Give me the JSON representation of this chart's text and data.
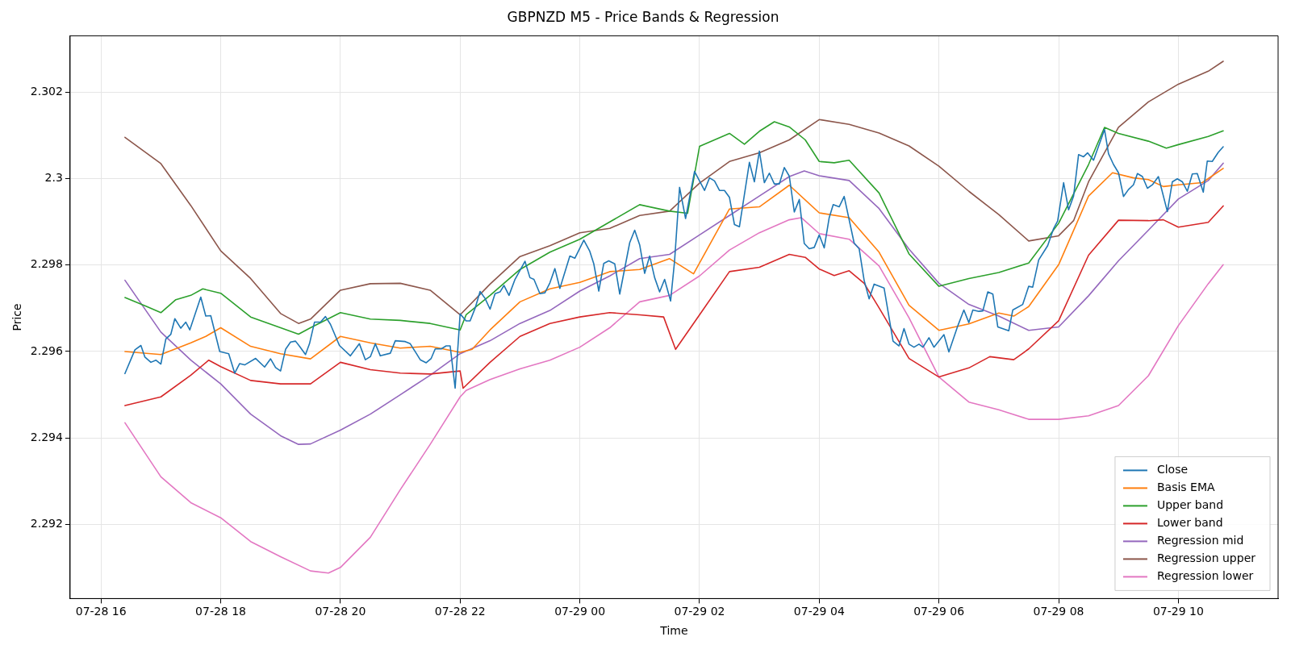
{
  "chart_data": {
    "type": "line",
    "title": "GBPNZD M5 - Price Bands & Regression",
    "xlabel": "Time",
    "ylabel": "Price",
    "xlim": [
      "--07-28T15:29",
      "--07-29T11:40"
    ],
    "ylim": [
      2.29028,
      2.30331
    ],
    "xticks": [
      {
        "value": "--07-28T16:00",
        "label": "07-28 16"
      },
      {
        "value": "--07-28T18:00",
        "label": "07-28 18"
      },
      {
        "value": "--07-28T20:00",
        "label": "07-28 20"
      },
      {
        "value": "--07-28T22:00",
        "label": "07-28 22"
      },
      {
        "value": "--07-29T00:00",
        "label": "07-29 00"
      },
      {
        "value": "--07-29T02:00",
        "label": "07-29 02"
      },
      {
        "value": "--07-29T04:00",
        "label": "07-29 04"
      },
      {
        "value": "--07-29T06:00",
        "label": "07-29 06"
      },
      {
        "value": "--07-29T08:00",
        "label": "07-29 08"
      },
      {
        "value": "--07-29T10:00",
        "label": "07-29 10"
      }
    ],
    "yticks": [
      2.292,
      2.294,
      2.296,
      2.298,
      2.3,
      2.302
    ],
    "grid": true,
    "legend": "bottom right",
    "series": [
      {
        "name": "Close",
        "color": "#1f77b4",
        "x": [
          "--07-28T16:24",
          "--07-28T16:34",
          "--07-28T16:40",
          "--07-28T16:44",
          "--07-28T16:50",
          "--07-28T16:55",
          "--07-28T17:00",
          "--07-28T17:05",
          "--07-28T17:10",
          "--07-28T17:14",
          "--07-28T17:20",
          "--07-28T17:25",
          "--07-28T17:29",
          "--07-28T17:40",
          "--07-28T17:45",
          "--07-28T17:50",
          "--07-28T17:59",
          "--07-28T18:08",
          "--07-28T18:14",
          "--07-28T18:19",
          "--07-28T18:24",
          "--07-28T18:35",
          "--07-28T18:44",
          "--07-28T18:50",
          "--07-28T18:55",
          "--07-28T19:00",
          "--07-28T19:05",
          "--07-28T19:10",
          "--07-28T19:15",
          "--07-28T19:19",
          "--07-28T19:25",
          "--07-28T19:29",
          "--07-28T19:34",
          "--07-28T19:40",
          "--07-28T19:45",
          "--07-28T19:50",
          "--07-28T19:59",
          "--07-28T20:10",
          "--07-28T20:19",
          "--07-28T20:25",
          "--07-28T20:30",
          "--07-28T20:35",
          "--07-28T20:40",
          "--07-28T20:50",
          "--07-28T20:55",
          "--07-28T21:05",
          "--07-28T21:10",
          "--07-28T21:16",
          "--07-28T21:20",
          "--07-28T21:26",
          "--07-28T21:31",
          "--07-28T21:35",
          "--07-28T21:41",
          "--07-28T21:46",
          "--07-28T21:50",
          "--07-28T21:55",
          "--07-28T22:00",
          "--07-28T22:06",
          "--07-28T22:10",
          "--07-28T22:15",
          "--07-28T22:20",
          "--07-28T22:25",
          "--07-28T22:30",
          "--07-28T22:35",
          "--07-28T22:40",
          "--07-28T22:44",
          "--07-28T22:49",
          "--07-28T22:55",
          "--07-28T23:05",
          "--07-28T23:10",
          "--07-28T23:14",
          "--07-28T23:20",
          "--07-28T23:25",
          "--07-28T23:30",
          "--07-28T23:35",
          "--07-28T23:40",
          "--07-28T23:50",
          "--07-28T23:55",
          "--07-29T00:04",
          "--07-29T00:10",
          "--07-29T00:14",
          "--07-29T00:19",
          "--07-29T00:24",
          "--07-29T00:29",
          "--07-29T00:35",
          "--07-29T00:40",
          "--07-29T00:50",
          "--07-29T00:55",
          "--07-29T01:00",
          "--07-29T01:05",
          "--07-29T01:10",
          "--07-29T01:15",
          "--07-29T01:20",
          "--07-29T01:25",
          "--07-29T01:31",
          "--07-29T01:35",
          "--07-29T01:40",
          "--07-29T01:46",
          "--07-29T01:55",
          "--07-29T02:00",
          "--07-29T02:05",
          "--07-29T02:10",
          "--07-29T02:15",
          "--07-29T02:20",
          "--07-29T02:25",
          "--07-29T02:30",
          "--07-29T02:35",
          "--07-29T02:40",
          "--07-29T02:50",
          "--07-29T02:55",
          "--07-29T03:00",
          "--07-29T03:05",
          "--07-29T03:10",
          "--07-29T03:15",
          "--07-29T03:20",
          "--07-29T03:25",
          "--07-29T03:30",
          "--07-29T03:35",
          "--07-29T03:40",
          "--07-29T03:45",
          "--07-29T03:50",
          "--07-29T03:55",
          "--07-29T04:00",
          "--07-29T04:05",
          "--07-29T04:10",
          "--07-29T04:14",
          "--07-29T04:20",
          "--07-29T04:25",
          "--07-29T04:35",
          "--07-29T04:40",
          "--07-29T04:45",
          "--07-29T04:50",
          "--07-29T04:55",
          "--07-29T05:05",
          "--07-29T05:14",
          "--07-29T05:20",
          "--07-29T05:25",
          "--07-29T05:30",
          "--07-29T05:35",
          "--07-29T05:40",
          "--07-29T05:44",
          "--07-29T05:50",
          "--07-29T05:55",
          "--07-29T06:05",
          "--07-29T06:10",
          "--07-29T06:19",
          "--07-29T06:25",
          "--07-29T06:30",
          "--07-29T06:34",
          "--07-29T06:40",
          "--07-29T06:44",
          "--07-29T06:49",
          "--07-29T06:54",
          "--07-29T06:59",
          "--07-29T07:10",
          "--07-29T07:14",
          "--07-29T07:24",
          "--07-29T07:30",
          "--07-29T07:34",
          "--07-29T07:40",
          "--07-29T07:49",
          "--07-29T07:55",
          "--07-29T07:59",
          "--07-29T08:05",
          "--07-29T08:10",
          "--07-29T08:15",
          "--07-29T08:20",
          "--07-29T08:25",
          "--07-29T08:29",
          "--07-29T08:35",
          "--07-29T08:46",
          "--07-29T08:50",
          "--07-29T08:55",
          "--07-29T09:00",
          "--07-29T09:05",
          "--07-29T09:10",
          "--07-29T09:15",
          "--07-29T09:19",
          "--07-29T09:24",
          "--07-29T09:29",
          "--07-29T09:34",
          "--07-29T09:40",
          "--07-29T09:49",
          "--07-29T09:54",
          "--07-29T09:59",
          "--07-29T10:04",
          "--07-29T10:09",
          "--07-29T10:14",
          "--07-29T10:19",
          "--07-29T10:25",
          "--07-29T10:29",
          "--07-29T10:34",
          "--07-29T10:40",
          "--07-29T10:45"
        ],
        "values": [
          2.29549,
          2.29604,
          2.29614,
          2.29587,
          2.29575,
          2.2958,
          2.29571,
          2.29629,
          2.2964,
          2.29676,
          2.29654,
          2.29668,
          2.2965,
          2.29726,
          2.29682,
          2.29683,
          2.296,
          2.29595,
          2.2955,
          2.29572,
          2.29569,
          2.29584,
          2.29564,
          2.29583,
          2.29563,
          2.29555,
          2.29605,
          2.29622,
          2.29624,
          2.29612,
          2.29593,
          2.29618,
          2.29668,
          2.29668,
          2.29681,
          2.29663,
          2.29614,
          2.2959,
          2.29618,
          2.29581,
          2.29588,
          2.29618,
          2.2959,
          2.29596,
          2.29625,
          2.29623,
          2.29618,
          2.29596,
          2.29581,
          2.29574,
          2.29584,
          2.29606,
          2.29606,
          2.29613,
          2.29613,
          2.29515,
          2.29687,
          2.29671,
          2.29671,
          2.297,
          2.29739,
          2.29723,
          2.29698,
          2.29734,
          2.29738,
          2.29753,
          2.2973,
          2.29767,
          2.29809,
          2.29771,
          2.29767,
          2.29734,
          2.29736,
          2.29759,
          2.29792,
          2.29746,
          2.29821,
          2.29816,
          2.29858,
          2.29832,
          2.29803,
          2.2974,
          2.29804,
          2.2981,
          2.29803,
          2.29733,
          2.29852,
          2.29881,
          2.29847,
          2.29781,
          2.29821,
          2.29771,
          2.29738,
          2.29767,
          2.29717,
          2.2981,
          2.2998,
          2.29908,
          2.30017,
          2.29995,
          2.29973,
          2.30002,
          2.29995,
          2.29973,
          2.29973,
          2.29957,
          2.29894,
          2.29889,
          2.30038,
          2.29993,
          2.30064,
          2.29991,
          2.30013,
          2.29988,
          2.29988,
          2.30026,
          2.30006,
          2.29923,
          2.29952,
          2.2985,
          2.29838,
          2.29841,
          2.2987,
          2.2984,
          2.2991,
          2.2994,
          2.29935,
          2.29959,
          2.29851,
          2.29838,
          2.29765,
          2.29722,
          2.29756,
          2.29747,
          2.29624,
          2.29613,
          2.29653,
          2.29617,
          2.2961,
          2.29617,
          2.2961,
          2.29632,
          2.2961,
          2.29639,
          2.29599,
          2.2966,
          2.29696,
          2.29667,
          2.29696,
          2.29693,
          2.29694,
          2.29738,
          2.29733,
          2.29657,
          2.29648,
          2.29696,
          2.29709,
          2.29751,
          2.29749,
          2.29812,
          2.29845,
          2.29885,
          2.29902,
          2.29991,
          2.29928,
          2.2996,
          2.30056,
          2.30051,
          2.3006,
          2.30043,
          2.30114,
          2.30058,
          2.30033,
          2.30014,
          2.29959,
          2.29975,
          2.29986,
          2.30012,
          2.30005,
          2.29978,
          2.29986,
          2.30005,
          2.29924,
          2.29993,
          2.3,
          2.29993,
          2.29971,
          2.30011,
          2.30012,
          2.29969,
          2.30041,
          2.3004,
          2.30061,
          2.30074
        ]
      },
      {
        "name": "Basis EMA",
        "color": "#ff7f0e",
        "x": [
          "--07-28T16:24",
          "--07-28T17:00",
          "--07-28T17:30",
          "--07-28T17:45",
          "--07-28T18:00",
          "--07-28T18:30",
          "--07-28T19:00",
          "--07-28T19:30",
          "--07-28T20:00",
          "--07-28T20:30",
          "--07-28T21:00",
          "--07-28T21:30",
          "--07-28T22:00",
          "--07-28T22:12",
          "--07-28T22:30",
          "--07-28T23:00",
          "--07-28T23:30",
          "--07-29T00:00",
          "--07-29T00:30",
          "--07-29T01:00",
          "--07-29T01:30",
          "--07-29T01:54",
          "--07-29T02:30",
          "--07-29T03:00",
          "--07-29T03:30",
          "--07-29T04:00",
          "--07-29T04:30",
          "--07-29T05:00",
          "--07-29T05:30",
          "--07-29T06:00",
          "--07-29T06:30",
          "--07-29T07:00",
          "--07-29T07:15",
          "--07-29T07:30",
          "--07-29T08:00",
          "--07-29T08:30",
          "--07-29T08:54",
          "--07-29T09:15",
          "--07-29T09:30",
          "--07-29T09:45",
          "--07-29T10:00",
          "--07-29T10:24",
          "--07-29T10:45"
        ],
        "values": [
          2.296,
          2.29593,
          2.2962,
          2.29635,
          2.29655,
          2.29612,
          2.29595,
          2.29583,
          2.29635,
          2.2962,
          2.29608,
          2.29612,
          2.29598,
          2.29605,
          2.2965,
          2.29715,
          2.29745,
          2.2976,
          2.29785,
          2.2979,
          2.29815,
          2.2978,
          2.2993,
          2.29935,
          2.29985,
          2.29921,
          2.2991,
          2.2983,
          2.29707,
          2.29649,
          2.29664,
          2.29689,
          2.29682,
          2.29704,
          2.29801,
          2.2996,
          2.30014,
          2.30002,
          2.29998,
          2.29982,
          2.29986,
          2.29991,
          2.30024
        ]
      },
      {
        "name": "Upper band",
        "color": "#2ca02c",
        "x": [
          "--07-28T16:24",
          "--07-28T16:45",
          "--07-28T17:00",
          "--07-28T17:15",
          "--07-28T17:30",
          "--07-28T17:42",
          "--07-28T18:00",
          "--07-28T18:30",
          "--07-28T19:00",
          "--07-28T19:18",
          "--07-28T19:30",
          "--07-28T20:00",
          "--07-28T20:30",
          "--07-28T21:00",
          "--07-28T21:30",
          "--07-28T22:00",
          "--07-28T22:06",
          "--07-28T22:30",
          "--07-28T23:00",
          "--07-28T23:30",
          "--07-29T00:00",
          "--07-29T00:30",
          "--07-29T01:00",
          "--07-29T01:30",
          "--07-29T01:48",
          "--07-29T02:00",
          "--07-29T02:30",
          "--07-29T02:45",
          "--07-29T03:00",
          "--07-29T03:15",
          "--07-29T03:30",
          "--07-29T03:46",
          "--07-29T04:00",
          "--07-29T04:15",
          "--07-29T04:30",
          "--07-29T05:00",
          "--07-29T05:30",
          "--07-29T06:00",
          "--07-29T06:30",
          "--07-29T07:00",
          "--07-29T07:30",
          "--07-29T08:00",
          "--07-29T08:30",
          "--07-29T08:46",
          "--07-29T09:00",
          "--07-29T09:30",
          "--07-29T09:48",
          "--07-29T10:00",
          "--07-29T10:30",
          "--07-29T10:45"
        ],
        "values": [
          2.29725,
          2.29705,
          2.2969,
          2.2972,
          2.2973,
          2.29745,
          2.29735,
          2.2968,
          2.29655,
          2.2964,
          2.29655,
          2.2969,
          2.29675,
          2.29672,
          2.29665,
          2.2965,
          2.29685,
          2.2973,
          2.2979,
          2.2983,
          2.2986,
          2.299,
          2.2994,
          2.29925,
          2.2992,
          2.30075,
          2.30105,
          2.3008,
          2.3011,
          2.30132,
          2.3012,
          2.3009,
          2.3004,
          2.30037,
          2.30043,
          2.29967,
          2.29826,
          2.29751,
          2.29769,
          2.29783,
          2.29805,
          2.29897,
          2.30033,
          2.30119,
          2.30105,
          2.30087,
          2.30071,
          2.30079,
          2.30098,
          2.30111
        ]
      },
      {
        "name": "Lower band",
        "color": "#d62728",
        "x": [
          "--07-28T16:24",
          "--07-28T17:00",
          "--07-28T17:30",
          "--07-28T17:48",
          "--07-28T18:00",
          "--07-28T18:30",
          "--07-28T19:00",
          "--07-28T19:30",
          "--07-28T20:00",
          "--07-28T20:30",
          "--07-28T21:00",
          "--07-28T21:30",
          "--07-28T22:00",
          "--07-28T22:03",
          "--07-28T22:30",
          "--07-28T23:00",
          "--07-28T23:30",
          "--07-29T00:00",
          "--07-29T00:30",
          "--07-29T01:00",
          "--07-29T01:24",
          "--07-29T01:36",
          "--07-29T02:00",
          "--07-29T02:30",
          "--07-29T03:00",
          "--07-29T03:30",
          "--07-29T03:46",
          "--07-29T04:00",
          "--07-29T04:15",
          "--07-29T04:30",
          "--07-29T04:45",
          "--07-29T05:00",
          "--07-29T05:30",
          "--07-29T06:00",
          "--07-29T06:30",
          "--07-29T06:51",
          "--07-29T07:15",
          "--07-29T07:30",
          "--07-29T08:00",
          "--07-29T08:30",
          "--07-29T09:00",
          "--07-29T09:30",
          "--07-29T09:45",
          "--07-29T10:00",
          "--07-29T10:30",
          "--07-29T10:45"
        ],
        "values": [
          2.29475,
          2.29495,
          2.29545,
          2.2958,
          2.29565,
          2.29533,
          2.29525,
          2.29525,
          2.29575,
          2.29558,
          2.2955,
          2.29548,
          2.29555,
          2.29515,
          2.29575,
          2.29635,
          2.29665,
          2.2968,
          2.2969,
          2.29685,
          2.2968,
          2.29605,
          2.29685,
          2.29785,
          2.29795,
          2.29825,
          2.29818,
          2.29791,
          2.29776,
          2.29787,
          2.29758,
          2.29701,
          2.29584,
          2.29541,
          2.29562,
          2.29588,
          2.29581,
          2.29606,
          2.29671,
          2.29823,
          2.29904,
          2.29903,
          2.29905,
          2.29888,
          2.29899,
          2.29937
        ]
      },
      {
        "name": "Regression mid",
        "color": "#9467bd",
        "x": [
          "--07-28T16:24",
          "--07-28T17:00",
          "--07-28T17:30",
          "--07-28T18:00",
          "--07-28T18:30",
          "--07-28T19:00",
          "--07-28T19:18",
          "--07-28T19:30",
          "--07-28T20:00",
          "--07-28T20:30",
          "--07-28T21:00",
          "--07-28T21:30",
          "--07-28T22:00",
          "--07-28T22:30",
          "--07-28T23:00",
          "--07-28T23:30",
          "--07-29T00:00",
          "--07-29T00:30",
          "--07-29T01:00",
          "--07-29T01:30",
          "--07-29T02:00",
          "--07-29T02:30",
          "--07-29T03:00",
          "--07-29T03:30",
          "--07-29T03:45",
          "--07-29T04:00",
          "--07-29T04:30",
          "--07-29T05:00",
          "--07-29T05:30",
          "--07-29T06:00",
          "--07-29T06:30",
          "--07-29T07:00",
          "--07-29T07:30",
          "--07-29T08:00",
          "--07-29T08:30",
          "--07-29T09:00",
          "--07-29T09:30",
          "--07-29T10:00",
          "--07-29T10:30",
          "--07-29T10:45"
        ],
        "values": [
          2.29765,
          2.29645,
          2.2958,
          2.29525,
          2.29455,
          2.29405,
          2.29385,
          2.29386,
          2.29418,
          2.29455,
          2.295,
          2.29545,
          2.29595,
          2.29625,
          2.29665,
          2.29695,
          2.2974,
          2.29775,
          2.29815,
          2.29825,
          2.2987,
          2.29915,
          2.2996,
          2.30005,
          2.30018,
          2.30007,
          2.29996,
          2.29931,
          2.29837,
          2.29758,
          2.29709,
          2.29682,
          2.29649,
          2.29657,
          2.29729,
          2.2981,
          2.29881,
          2.29953,
          2.29996,
          2.30036
        ]
      },
      {
        "name": "Regression upper",
        "color": "#8c564b",
        "x": [
          "--07-28T16:24",
          "--07-28T17:00",
          "--07-28T17:30",
          "--07-28T18:00",
          "--07-28T18:30",
          "--07-28T19:00",
          "--07-28T19:18",
          "--07-28T19:30",
          "--07-28T20:00",
          "--07-28T20:30",
          "--07-28T21:00",
          "--07-28T21:30",
          "--07-28T22:00",
          "--07-28T22:30",
          "--07-28T23:00",
          "--07-28T23:30",
          "--07-29T00:00",
          "--07-29T00:30",
          "--07-29T01:00",
          "--07-29T01:30",
          "--07-29T02:00",
          "--07-29T02:30",
          "--07-29T03:00",
          "--07-29T03:30",
          "--07-29T04:00",
          "--07-29T04:30",
          "--07-29T05:00",
          "--07-29T05:30",
          "--07-29T06:00",
          "--07-29T06:30",
          "--07-29T07:00",
          "--07-29T07:30",
          "--07-29T08:00",
          "--07-29T08:15",
          "--07-29T08:30",
          "--07-29T09:00",
          "--07-29T09:30",
          "--07-29T10:00",
          "--07-29T10:30",
          "--07-29T10:45"
        ],
        "values": [
          2.30096,
          2.30035,
          2.29938,
          2.29833,
          2.29769,
          2.29688,
          2.29665,
          2.29675,
          2.29742,
          2.29757,
          2.29758,
          2.29742,
          2.29685,
          2.29756,
          2.2982,
          2.29845,
          2.29875,
          2.29885,
          2.29915,
          2.29925,
          2.2999,
          2.3004,
          2.3006,
          2.3009,
          2.30137,
          2.30126,
          2.30106,
          2.30076,
          2.30029,
          2.29971,
          2.29917,
          2.29856,
          2.29868,
          2.29903,
          2.29993,
          2.30119,
          2.30178,
          2.30219,
          2.30249,
          2.30272
        ]
      },
      {
        "name": "Regression lower",
        "color": "#e377c2",
        "x": [
          "--07-28T16:24",
          "--07-28T17:00",
          "--07-28T17:30",
          "--07-28T18:00",
          "--07-28T18:30",
          "--07-28T19:00",
          "--07-28T19:30",
          "--07-28T19:48",
          "--07-28T20:00",
          "--07-28T20:30",
          "--07-28T21:00",
          "--07-28T21:30",
          "--07-28T22:00",
          "--07-28T22:06",
          "--07-28T22:30",
          "--07-28T23:00",
          "--07-28T23:30",
          "--07-29T00:00",
          "--07-29T00:30",
          "--07-29T01:00",
          "--07-29T01:30",
          "--07-29T02:00",
          "--07-29T02:30",
          "--07-29T03:00",
          "--07-29T03:30",
          "--07-29T03:42",
          "--07-29T04:00",
          "--07-29T04:30",
          "--07-29T05:00",
          "--07-29T05:30",
          "--07-29T06:00",
          "--07-29T06:30",
          "--07-29T07:00",
          "--07-29T07:30",
          "--07-29T08:00",
          "--07-29T08:30",
          "--07-29T09:00",
          "--07-29T09:30",
          "--07-29T10:00",
          "--07-29T10:30",
          "--07-29T10:45"
        ],
        "values": [
          2.29435,
          2.2931,
          2.2925,
          2.29215,
          2.2916,
          2.29125,
          2.29092,
          2.29087,
          2.291,
          2.2917,
          2.2928,
          2.29385,
          2.29495,
          2.2951,
          2.29535,
          2.2956,
          2.2958,
          2.2961,
          2.29655,
          2.29715,
          2.2973,
          2.29775,
          2.29835,
          2.29875,
          2.29905,
          2.2991,
          2.29873,
          2.2986,
          2.29798,
          2.29678,
          2.29541,
          2.29483,
          2.29465,
          2.29443,
          2.29443,
          2.29451,
          2.29475,
          2.29544,
          2.2966,
          2.29757,
          2.29801
        ]
      }
    ]
  }
}
